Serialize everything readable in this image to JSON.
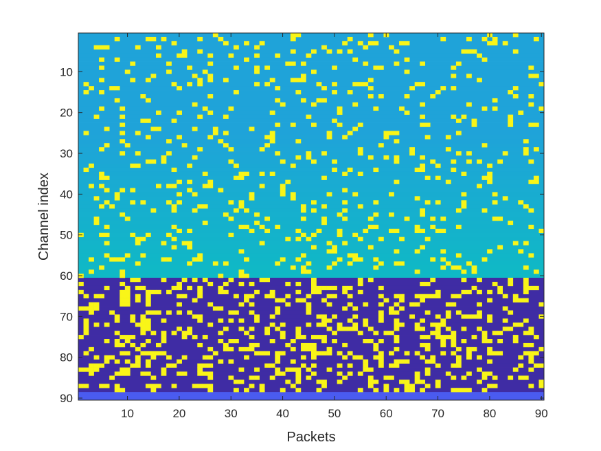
{
  "chart_data": {
    "type": "heatmap",
    "title": "",
    "xlabel": "Packets",
    "ylabel": "Channel index",
    "xlim": [
      0.5,
      90.5
    ],
    "ylim": [
      0.5,
      90.5
    ],
    "y_reversed": true,
    "x_ticks": [
      "10",
      "20",
      "30",
      "40",
      "50",
      "60",
      "70",
      "80",
      "90"
    ],
    "y_ticks": [
      "10",
      "20",
      "30",
      "40",
      "50",
      "60",
      "70",
      "80",
      "90"
    ],
    "grid": false,
    "colormap": "parula",
    "colors": {
      "high": "#f9f518",
      "upper_region": "#1fa3d9",
      "upper_region_lower": "#0fb9c5",
      "lower_region": "#3f2ca4",
      "bottom_rows": "#4a5bf0",
      "axis": "#262626"
    },
    "n_packets": 90,
    "n_channels": 90,
    "regions": [
      {
        "name": "channels 1-60",
        "level": "medium (teal/cyan)"
      },
      {
        "name": "channels 61-88",
        "level": "low (dark blue)"
      },
      {
        "name": "channels 89-90",
        "level": "low-medium (blue)"
      }
    ],
    "notes": "Scattered cells at maximum value (yellow) across all packets; denser in channels 61-88."
  }
}
